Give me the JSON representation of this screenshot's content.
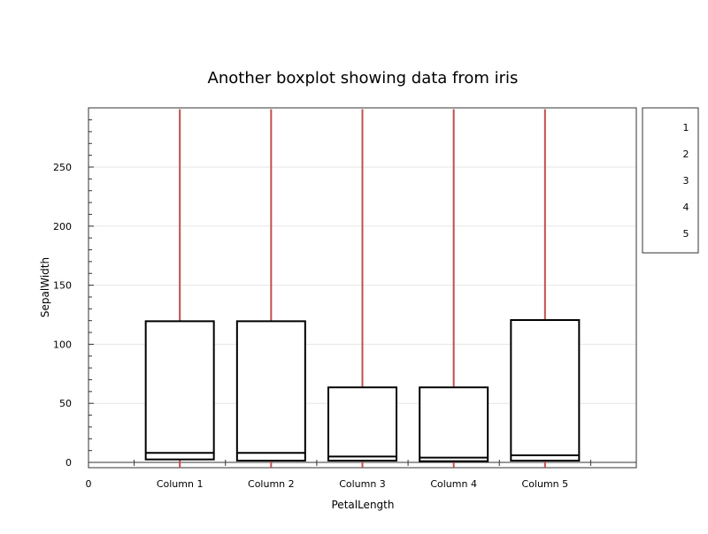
{
  "chart_data": {
    "type": "box",
    "title": "Another  boxplot showing data from iris",
    "xlabel": "PetalLength",
    "ylabel": "SepalWidth",
    "x_zero_label": "0",
    "ylim": [
      -4,
      299
    ],
    "yticks": [
      0,
      50,
      100,
      150,
      200,
      250
    ],
    "y_minor_step": 10,
    "grid": true,
    "legend_position": "right",
    "legend": [
      "1",
      "2",
      "3",
      "4",
      "5"
    ],
    "whisker_color": "#c0504d",
    "categories": [
      "Column 1",
      "Column 2",
      "Column 3",
      "Column 4",
      "Column 5"
    ],
    "boxes": [
      {
        "name": "Column 1",
        "min": 1,
        "q1": 2.5,
        "median": 8,
        "q3": 119.5,
        "max": 299
      },
      {
        "name": "Column 2",
        "min": 1,
        "q1": 1.5,
        "median": 8,
        "q3": 119.5,
        "max": 299
      },
      {
        "name": "Column 3",
        "min": 1,
        "q1": 1.5,
        "median": 5,
        "q3": 63.5,
        "max": 299
      },
      {
        "name": "Column 4",
        "min": 1,
        "q1": 1,
        "median": 4,
        "q3": 63.5,
        "max": 299
      },
      {
        "name": "Column 5",
        "min": 1,
        "q1": 1.5,
        "median": 6,
        "q3": 120.5,
        "max": 299
      }
    ]
  }
}
